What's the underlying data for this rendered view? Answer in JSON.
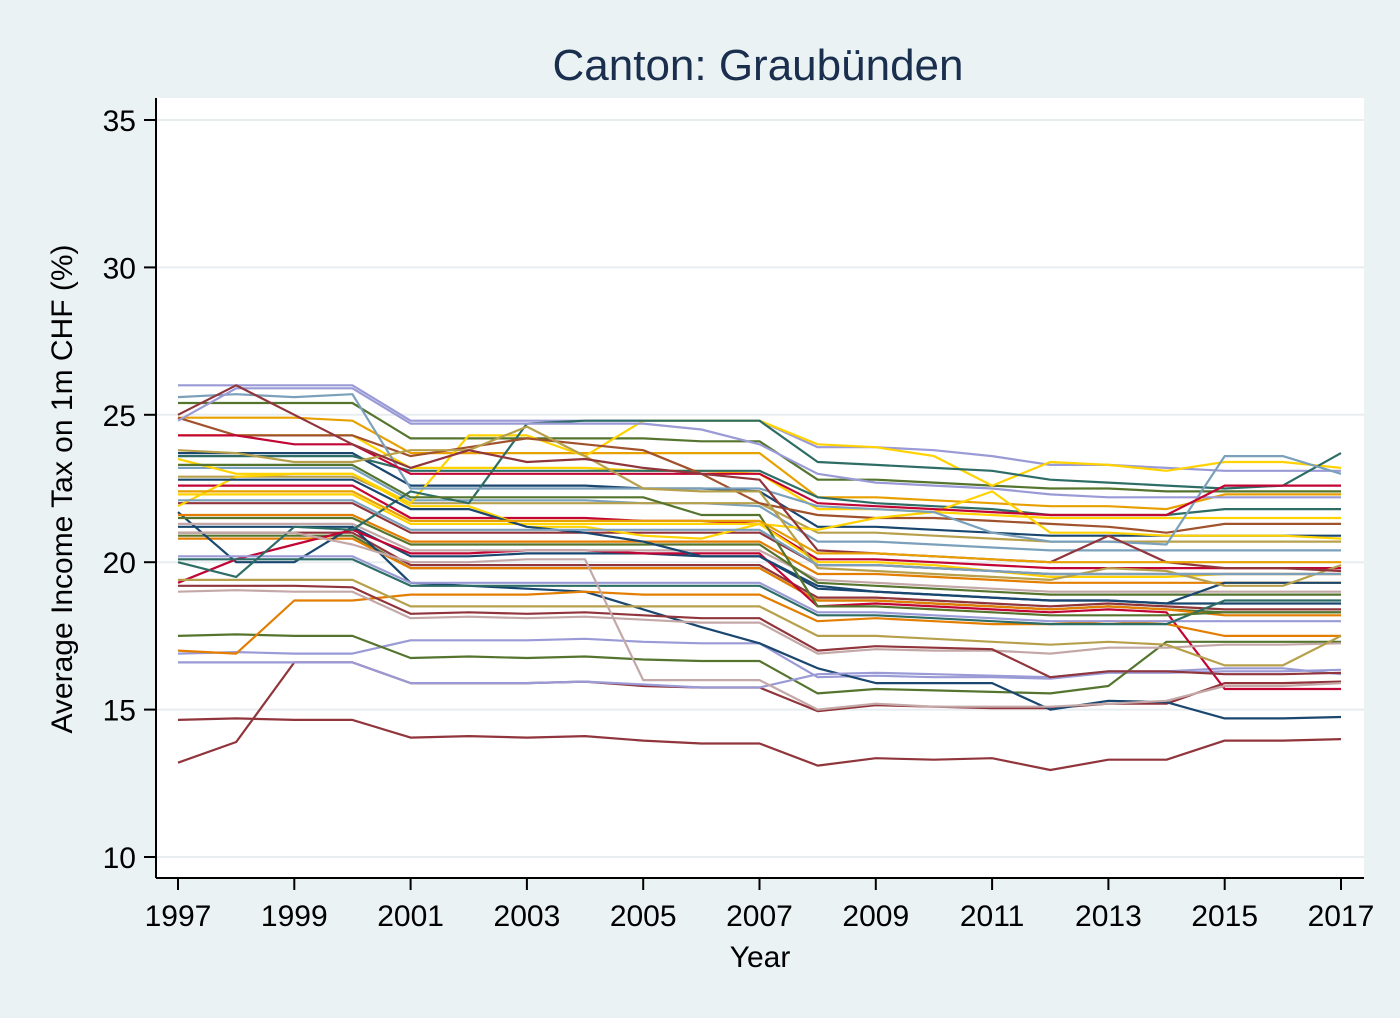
{
  "chart_data": {
    "type": "line",
    "title": "Canton: Graubünden",
    "xlabel": "Year",
    "ylabel": "Average Income Tax on 1m CHF (%)",
    "xlim": [
      1997,
      2017
    ],
    "ylim": [
      10,
      35
    ],
    "xticks": [
      "1997",
      "1999",
      "2001",
      "2003",
      "2005",
      "2007",
      "2009",
      "2011",
      "2013",
      "2015",
      "2017"
    ],
    "yticks": [
      "10",
      "15",
      "20",
      "25",
      "30",
      "35"
    ],
    "grid": true,
    "legend": "none",
    "x": [
      1997,
      1998,
      1999,
      2000,
      2001,
      2002,
      2003,
      2004,
      2005,
      2006,
      2007,
      2008,
      2009,
      2010,
      2011,
      2012,
      2013,
      2014,
      2015,
      2016,
      2017
    ],
    "series": [
      {
        "color": "#e8a000",
        "values": [
          24.9,
          24.9,
          24.9,
          24.8,
          23.7,
          23.7,
          23.7,
          23.7,
          23.7,
          23.7,
          23.7,
          22.2,
          22.2,
          22.1,
          22.0,
          21.9,
          21.9,
          21.8,
          22.3,
          22.3,
          22.3
        ]
      },
      {
        "color": "#1a476f",
        "values": [
          21.2,
          21.2,
          21.2,
          21.2,
          20.2,
          20.2,
          20.3,
          20.3,
          20.3,
          20.2,
          20.2,
          19.1,
          19.0,
          18.9,
          18.8,
          18.7,
          18.7,
          18.6,
          18.6,
          18.6,
          18.6
        ]
      },
      {
        "color": "#90353b",
        "values": [
          21.0,
          21.0,
          21.0,
          21.0,
          19.9,
          19.9,
          19.9,
          19.9,
          19.9,
          19.9,
          19.9,
          18.8,
          18.8,
          18.7,
          18.6,
          18.5,
          18.6,
          18.5,
          18.4,
          18.4,
          18.4
        ]
      },
      {
        "color": "#55752f",
        "values": [
          20.9,
          20.9,
          20.9,
          20.9,
          19.8,
          19.8,
          19.8,
          19.8,
          19.8,
          19.8,
          19.8,
          18.7,
          18.7,
          18.6,
          18.5,
          18.4,
          18.5,
          18.4,
          18.3,
          18.3,
          18.3
        ]
      },
      {
        "color": "#e37e00",
        "values": [
          20.8,
          20.8,
          20.8,
          20.8,
          19.8,
          19.8,
          19.8,
          19.8,
          19.8,
          19.8,
          19.8,
          18.7,
          18.7,
          18.6,
          18.5,
          18.4,
          18.5,
          18.4,
          18.2,
          18.2,
          18.2
        ]
      },
      {
        "color": "#90353b",
        "values": [
          14.65,
          14.7,
          14.65,
          14.65,
          14.05,
          14.1,
          14.05,
          14.1,
          13.95,
          13.85,
          13.85,
          13.1,
          13.35,
          13.3,
          13.35,
          12.95,
          13.3,
          13.3,
          13.95,
          13.95,
          14.0
        ]
      },
      {
        "color": "#90353b",
        "values": [
          13.2,
          13.9,
          16.6,
          16.6,
          15.9,
          15.9,
          15.9,
          15.95,
          15.8,
          15.75,
          15.75,
          14.95,
          15.15,
          15.1,
          15.05,
          15.05,
          15.2,
          15.2,
          15.9,
          15.9,
          15.95
        ]
      },
      {
        "color": "#9a9ad6",
        "values": [
          16.9,
          16.95,
          16.9,
          16.9,
          17.35,
          17.35,
          17.35,
          17.4,
          17.3,
          17.25,
          17.25,
          16.1,
          16.15,
          16.1,
          16.1,
          16.05,
          16.25,
          16.25,
          16.3,
          16.3,
          16.35
        ]
      },
      {
        "color": "#55752f",
        "values": [
          17.5,
          17.55,
          17.5,
          17.5,
          16.75,
          16.8,
          16.75,
          16.8,
          16.7,
          16.65,
          16.65,
          15.55,
          15.7,
          15.65,
          15.6,
          15.55,
          15.8,
          17.3,
          17.3,
          17.3,
          17.3
        ]
      },
      {
        "color": "#1a476f",
        "values": [
          21.7,
          20.0,
          20.0,
          21.2,
          19.3,
          19.2,
          19.1,
          19.0,
          18.4,
          17.8,
          17.25,
          16.4,
          15.9,
          15.9,
          15.9,
          15.0,
          15.3,
          15.25,
          14.7,
          14.7,
          14.75
        ]
      },
      {
        "color": "#9a9ad6",
        "values": [
          16.6,
          16.6,
          16.6,
          16.6,
          15.9,
          15.9,
          15.9,
          15.95,
          15.85,
          15.75,
          15.75,
          16.2,
          16.25,
          16.2,
          16.15,
          16.1,
          16.3,
          16.3,
          16.4,
          16.4,
          16.2
        ]
      },
      {
        "color": "#c10534",
        "values": [
          19.3,
          20.1,
          20.6,
          21.1,
          20.3,
          20.3,
          20.4,
          20.4,
          20.3,
          20.3,
          20.3,
          18.5,
          18.6,
          18.5,
          18.4,
          18.3,
          18.4,
          18.3,
          15.7,
          15.7,
          15.7
        ]
      },
      {
        "color": "#e37e00",
        "values": [
          17.0,
          16.9,
          18.7,
          18.7,
          18.9,
          18.9,
          18.9,
          19.0,
          18.9,
          18.9,
          18.9,
          18.0,
          18.1,
          18.0,
          17.9,
          17.9,
          18.0,
          17.9,
          17.5,
          17.5,
          17.5
        ]
      },
      {
        "color": "#c4a8a8",
        "values": [
          19.0,
          19.05,
          19.0,
          19.0,
          18.1,
          18.15,
          18.1,
          18.15,
          18.05,
          17.95,
          17.95,
          16.9,
          17.05,
          17.0,
          17.0,
          16.9,
          17.1,
          17.1,
          17.2,
          17.2,
          17.25
        ]
      },
      {
        "color": "#90353b",
        "values": [
          19.2,
          19.2,
          19.2,
          19.15,
          18.25,
          18.3,
          18.25,
          18.3,
          18.2,
          18.1,
          18.1,
          17.0,
          17.15,
          17.1,
          17.05,
          16.1,
          16.3,
          16.3,
          16.2,
          16.2,
          16.25
        ]
      },
      {
        "color": "#1a476f",
        "values": [
          23.7,
          23.7,
          23.7,
          23.7,
          22.6,
          22.6,
          22.6,
          22.6,
          22.5,
          22.5,
          22.4,
          21.2,
          21.2,
          21.1,
          21.0,
          20.9,
          20.9,
          20.9,
          20.9,
          20.9,
          20.9
        ]
      },
      {
        "color": "#55752f",
        "values": [
          25.4,
          25.4,
          25.4,
          25.4,
          24.2,
          24.2,
          24.2,
          24.2,
          24.2,
          24.1,
          24.1,
          22.8,
          22.8,
          22.7,
          22.6,
          22.5,
          22.5,
          22.4,
          22.4,
          22.4,
          22.4
        ]
      },
      {
        "color": "#ffd200",
        "values": [
          24.3,
          24.3,
          24.3,
          24.3,
          23.2,
          23.2,
          23.2,
          23.2,
          23.1,
          23.1,
          23.0,
          21.8,
          21.8,
          21.7,
          21.6,
          21.5,
          21.5,
          21.5,
          21.5,
          21.5,
          21.5
        ]
      },
      {
        "color": "#7ba0bb",
        "values": [
          23.2,
          23.2,
          23.2,
          23.2,
          22.1,
          22.1,
          22.1,
          22.1,
          22.0,
          22.0,
          21.9,
          20.7,
          20.7,
          20.6,
          20.5,
          20.4,
          20.4,
          20.4,
          20.4,
          20.4,
          20.4
        ]
      },
      {
        "color": "#c10534",
        "values": [
          22.6,
          22.6,
          22.6,
          22.6,
          21.5,
          21.5,
          21.5,
          21.5,
          21.4,
          21.4,
          21.3,
          20.1,
          20.1,
          20.0,
          19.9,
          19.8,
          19.8,
          19.8,
          19.8,
          19.8,
          19.8
        ]
      },
      {
        "color": "#9a9ad6",
        "values": [
          26.0,
          26.0,
          26.0,
          26.0,
          24.8,
          24.8,
          24.8,
          24.8,
          24.8,
          24.8,
          24.8,
          23.9,
          23.9,
          23.8,
          23.6,
          23.3,
          23.3,
          23.2,
          23.1,
          23.1,
          23.1
        ]
      },
      {
        "color": "#2d6d66",
        "values": [
          23.6,
          23.6,
          23.6,
          23.6,
          23.1,
          23.1,
          23.1,
          23.1,
          23.1,
          23.1,
          23.1,
          22.2,
          22.0,
          21.9,
          21.8,
          21.6,
          21.6,
          21.6,
          21.8,
          21.8,
          21.8
        ]
      },
      {
        "color": "#b7a04c",
        "values": [
          22.9,
          22.9,
          22.9,
          22.9,
          22.0,
          22.0,
          22.0,
          22.0,
          22.0,
          22.0,
          22.0,
          21.0,
          21.0,
          20.9,
          20.8,
          20.7,
          20.7,
          20.7,
          20.7,
          20.7,
          20.7
        ]
      },
      {
        "color": "#ffd200",
        "values": [
          22.3,
          22.3,
          22.3,
          22.3,
          21.3,
          21.3,
          21.3,
          21.3,
          21.3,
          21.3,
          21.3,
          20.0,
          20.0,
          19.9,
          19.7,
          19.5,
          19.5,
          19.5,
          19.6,
          19.6,
          19.6
        ]
      },
      {
        "color": "#c4a8a8",
        "values": [
          21.3,
          21.3,
          21.3,
          21.3,
          20.4,
          20.4,
          20.4,
          20.4,
          20.4,
          20.4,
          20.4,
          19.4,
          19.3,
          19.2,
          19.1,
          19.0,
          19.0,
          19.0,
          19.0,
          19.0,
          19.0
        ]
      },
      {
        "color": "#9a9ad6",
        "values": [
          20.2,
          20.2,
          20.2,
          20.2,
          19.3,
          19.3,
          19.3,
          19.3,
          19.3,
          19.3,
          19.3,
          18.3,
          18.3,
          18.2,
          18.1,
          18.0,
          18.0,
          18.0,
          18.0,
          18.0,
          18.0
        ]
      },
      {
        "color": "#b7a04c",
        "values": [
          19.4,
          19.4,
          19.4,
          19.4,
          18.5,
          18.5,
          18.5,
          18.5,
          18.5,
          18.5,
          18.5,
          17.5,
          17.5,
          17.4,
          17.3,
          17.2,
          17.3,
          17.2,
          16.5,
          16.5,
          17.5
        ]
      },
      {
        "color": "#2d6d66",
        "values": [
          20.1,
          20.1,
          20.1,
          20.1,
          19.2,
          19.2,
          19.2,
          19.2,
          19.2,
          19.2,
          19.2,
          18.2,
          18.2,
          18.1,
          18.0,
          17.9,
          17.9,
          17.9,
          18.7,
          18.7,
          18.7
        ]
      },
      {
        "color": "#90353b",
        "values": [
          22.0,
          22.0,
          22.0,
          22.0,
          21.0,
          21.0,
          21.0,
          21.0,
          21.0,
          21.0,
          21.0,
          19.9,
          19.9,
          19.8,
          19.7,
          19.6,
          19.6,
          19.6,
          19.6,
          19.6,
          19.6
        ]
      },
      {
        "color": "#e37e00",
        "values": [
          21.6,
          21.6,
          21.6,
          21.6,
          20.7,
          20.7,
          20.7,
          20.7,
          20.7,
          20.7,
          20.7,
          19.6,
          19.6,
          19.5,
          19.4,
          19.3,
          19.3,
          19.3,
          19.3,
          19.3,
          19.3
        ]
      },
      {
        "color": "#55752f",
        "values": [
          21.5,
          21.5,
          21.5,
          21.5,
          20.6,
          20.6,
          20.6,
          20.6,
          20.6,
          20.6,
          20.6,
          19.3,
          19.2,
          19.1,
          19.0,
          18.9,
          18.9,
          18.9,
          18.9,
          18.9,
          18.9
        ]
      },
      {
        "color": "#ffd200",
        "values": [
          23.5,
          23.0,
          23.0,
          23.0,
          22.0,
          24.3,
          24.3,
          23.6,
          24.8,
          24.8,
          24.8,
          24.0,
          23.9,
          23.6,
          22.6,
          23.4,
          23.3,
          23.1,
          23.4,
          23.4,
          23.2
        ]
      },
      {
        "color": "#2d6d66",
        "values": [
          20.0,
          19.5,
          21.2,
          21.1,
          22.4,
          22.0,
          24.7,
          24.8,
          24.8,
          24.8,
          24.8,
          23.4,
          23.3,
          23.2,
          23.1,
          22.8,
          22.7,
          22.6,
          22.5,
          22.6,
          23.7
        ]
      },
      {
        "color": "#a0522d",
        "values": [
          24.9,
          24.3,
          24.3,
          24.3,
          23.6,
          23.9,
          24.2,
          24.0,
          23.8,
          23.0,
          22.0,
          21.6,
          21.5,
          21.5,
          21.4,
          21.3,
          21.2,
          21.0,
          21.3,
          21.3,
          21.3
        ]
      },
      {
        "color": "#ffd200",
        "values": [
          21.9,
          22.9,
          23.0,
          23.0,
          21.9,
          21.9,
          21.2,
          21.2,
          20.9,
          20.8,
          21.3,
          21.1,
          21.5,
          21.7,
          22.4,
          21.0,
          21.0,
          20.9,
          20.9,
          20.9,
          20.8
        ]
      },
      {
        "color": "#7ba0bb",
        "values": [
          25.6,
          25.7,
          25.6,
          25.7,
          22.5,
          22.5,
          22.5,
          22.5,
          22.5,
          22.5,
          22.5,
          21.9,
          21.8,
          21.7,
          21.0,
          20.7,
          20.7,
          20.6,
          23.6,
          23.6,
          23.0
        ]
      },
      {
        "color": "#9a9ad6",
        "values": [
          24.8,
          25.9,
          25.9,
          25.9,
          24.7,
          24.7,
          24.7,
          24.7,
          24.7,
          24.5,
          24.0,
          23.0,
          22.7,
          22.6,
          22.5,
          22.3,
          22.2,
          22.2,
          22.2,
          22.2,
          22.2
        ]
      },
      {
        "color": "#c10534",
        "values": [
          24.3,
          24.3,
          24.0,
          24.0,
          23.0,
          23.0,
          23.0,
          23.0,
          23.0,
          23.0,
          23.0,
          22.0,
          21.9,
          21.8,
          21.7,
          21.6,
          21.6,
          21.6,
          22.6,
          22.6,
          22.6
        ]
      },
      {
        "color": "#1a476f",
        "values": [
          22.8,
          22.8,
          22.8,
          22.8,
          21.8,
          21.8,
          21.2,
          21.0,
          20.7,
          20.2,
          20.2,
          19.2,
          19.0,
          18.9,
          18.8,
          18.7,
          18.7,
          18.6,
          19.3,
          19.3,
          19.3
        ]
      },
      {
        "color": "#b7a04c",
        "values": [
          23.8,
          23.7,
          23.4,
          23.4,
          23.8,
          23.8,
          24.6,
          23.6,
          22.5,
          22.4,
          22.4,
          19.8,
          19.7,
          19.6,
          19.5,
          19.4,
          19.8,
          19.7,
          19.2,
          19.2,
          19.9
        ]
      },
      {
        "color": "#55752f",
        "values": [
          23.3,
          23.3,
          23.3,
          23.3,
          22.2,
          22.2,
          22.2,
          22.2,
          22.2,
          21.6,
          21.6,
          18.5,
          18.5,
          18.4,
          18.3,
          18.2,
          18.2,
          18.2,
          18.3,
          18.3,
          18.3
        ]
      },
      {
        "color": "#c4a8a8",
        "values": [
          21.0,
          21.0,
          21.0,
          20.6,
          20.0,
          20.0,
          20.1,
          20.1,
          16.0,
          16.0,
          16.0,
          15.0,
          15.2,
          15.1,
          15.1,
          15.1,
          15.2,
          15.3,
          15.8,
          15.8,
          15.9
        ]
      },
      {
        "color": "#90353b",
        "values": [
          25.0,
          26.0,
          25.0,
          24.0,
          23.2,
          23.8,
          23.4,
          23.5,
          23.2,
          23.0,
          22.8,
          20.4,
          20.3,
          20.2,
          20.1,
          20.0,
          20.9,
          20.0,
          19.8,
          19.8,
          19.7
        ]
      },
      {
        "color": "#7ba0bb",
        "values": [
          22.1,
          22.1,
          22.1,
          22.1,
          21.1,
          21.1,
          21.1,
          21.1,
          21.1,
          21.1,
          21.1,
          19.9,
          19.9,
          19.8,
          19.7,
          19.6,
          19.6,
          19.6,
          19.6,
          19.6,
          19.6
        ]
      },
      {
        "color": "#e8a000",
        "values": [
          22.4,
          22.4,
          22.4,
          22.4,
          21.4,
          21.4,
          21.4,
          21.4,
          21.4,
          21.4,
          21.4,
          20.3,
          20.3,
          20.2,
          20.1,
          20.0,
          20.0,
          20.0,
          20.0,
          20.0,
          20.0
        ]
      }
    ]
  }
}
